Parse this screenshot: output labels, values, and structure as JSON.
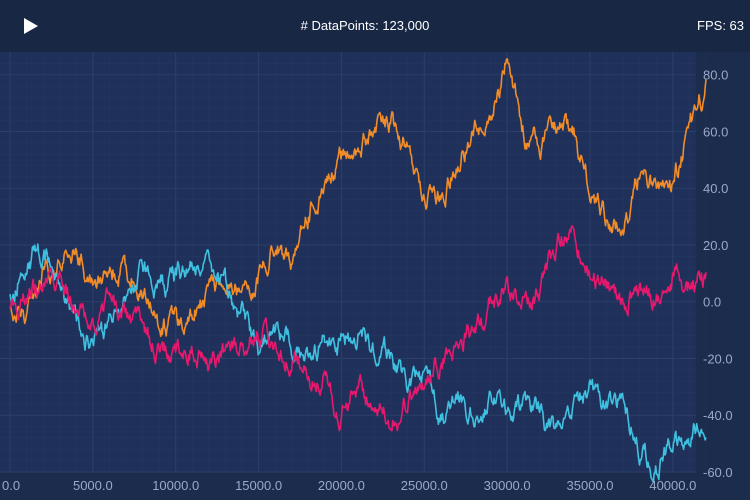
{
  "toolbar": {
    "play_icon": "play-icon",
    "datapoints_label": "# DataPoints: 123,000",
    "fps_label": "FPS: 63"
  },
  "colors": {
    "background": "#1c2c4d",
    "plot_background": "#1f315a",
    "grid": "#2c3f69",
    "tick_text": "#9aa9c7"
  },
  "chart_data": {
    "type": "line",
    "title": "",
    "xlabel": "",
    "ylabel": "",
    "xlim": [
      0,
      42000
    ],
    "ylim": [
      -60,
      88
    ],
    "x_ticks": [
      "0.0",
      "5000.0",
      "10000.0",
      "15000.0",
      "20000.0",
      "25000.0",
      "30000.0",
      "35000.0",
      "40000.0"
    ],
    "y_ticks": [
      "80.0",
      "60.0",
      "40.0",
      "20.0",
      "0.0",
      "-20.0",
      "-40.0",
      "-60.0"
    ],
    "y_axis_position": "right",
    "grid": true,
    "legend": "none",
    "series": [
      {
        "color": "#f28c28",
        "x": [
          0,
          1000,
          2000,
          3000,
          4000,
          5000,
          6000,
          7000,
          8000,
          9000,
          10000,
          11000,
          12000,
          13000,
          14000,
          15000,
          16000,
          17000,
          18000,
          19000,
          20000,
          21000,
          22000,
          23000,
          24000,
          25000,
          26000,
          27000,
          28000,
          29000,
          30000,
          31000,
          32000,
          33000,
          34000,
          35000,
          36000,
          37000,
          38000,
          39000,
          40000,
          41000,
          42000
        ],
        "y": [
          0,
          -5,
          10,
          12,
          18,
          8,
          12,
          10,
          5,
          -10,
          -8,
          -2,
          2,
          8,
          5,
          10,
          20,
          15,
          30,
          45,
          50,
          55,
          60,
          65,
          55,
          40,
          35,
          50,
          60,
          65,
          85,
          60,
          55,
          62,
          60,
          40,
          30,
          25,
          45,
          40,
          40,
          60,
          75
        ]
      },
      {
        "color": "#40c0e0",
        "x": [
          0,
          1000,
          2000,
          3000,
          4000,
          5000,
          6000,
          7000,
          8000,
          9000,
          10000,
          11000,
          12000,
          13000,
          14000,
          15000,
          16000,
          17000,
          18000,
          19000,
          20000,
          21000,
          22000,
          23000,
          24000,
          25000,
          26000,
          27000,
          28000,
          29000,
          30000,
          31000,
          32000,
          33000,
          34000,
          35000,
          36000,
          37000,
          38000,
          39000,
          40000,
          41000,
          42000
        ],
        "y": [
          5,
          15,
          18,
          5,
          -5,
          -15,
          -8,
          0,
          12,
          5,
          8,
          15,
          10,
          5,
          -5,
          -15,
          -10,
          -15,
          -18,
          -15,
          -15,
          -10,
          -18,
          -20,
          -30,
          -28,
          -40,
          -35,
          -40,
          -35,
          -40,
          -38,
          -40,
          -48,
          -35,
          -30,
          -40,
          -35,
          -50,
          -60,
          -50,
          -48,
          -42
        ]
      },
      {
        "color": "#e8186d",
        "x": [
          0,
          1000,
          2000,
          3000,
          4000,
          5000,
          6000,
          7000,
          8000,
          9000,
          10000,
          11000,
          12000,
          13000,
          14000,
          15000,
          16000,
          17000,
          18000,
          19000,
          20000,
          21000,
          22000,
          23000,
          24000,
          25000,
          26000,
          27000,
          28000,
          29000,
          30000,
          31000,
          32000,
          33000,
          34000,
          35000,
          36000,
          37000,
          38000,
          39000,
          40000,
          41000,
          42000
        ],
        "y": [
          0,
          2,
          5,
          10,
          -5,
          -8,
          2,
          -5,
          -10,
          -15,
          -18,
          -15,
          -20,
          -18,
          -15,
          -10,
          -15,
          -20,
          -25,
          -28,
          -40,
          -30,
          -35,
          -40,
          -35,
          -28,
          -20,
          -15,
          -10,
          0,
          5,
          0,
          5,
          20,
          25,
          10,
          5,
          0,
          5,
          2,
          8,
          5,
          8
        ]
      }
    ]
  }
}
